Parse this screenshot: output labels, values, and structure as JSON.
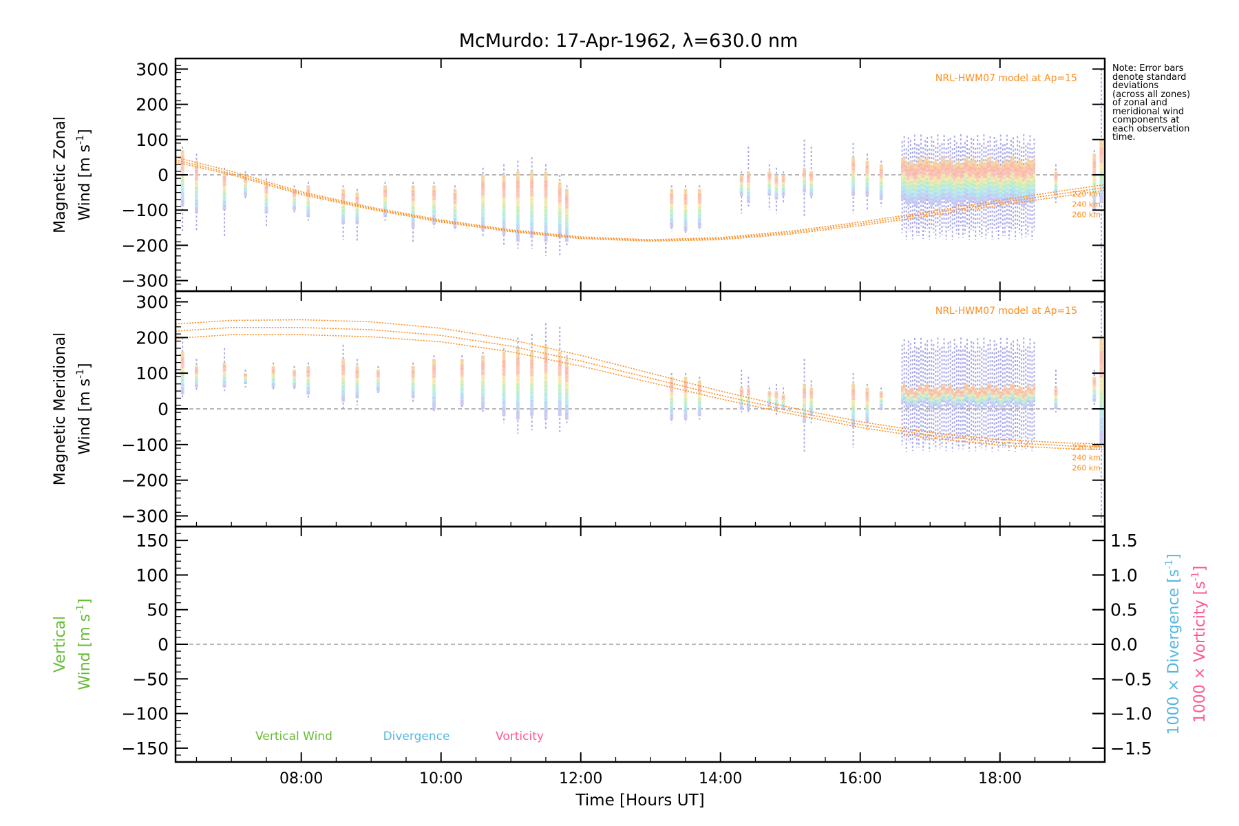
{
  "figure": {
    "title": "McMurdo: 17-Apr-1962, λ=630.0 nm",
    "note": "Note: Error bars\ndenote standard\ndeviations\n(across all zones)\nof zonal and\nmeridional wind\ncomponents at\neach observation\ntime.",
    "xlabel": "Time [Hours UT]",
    "model_label": "NRL-HWM07 model at Ap=15",
    "model_altitudes": [
      "220 km",
      "240 km",
      "260 km"
    ],
    "colors": {
      "model": "#ff8c1e",
      "zero_line": "#8c8c8c",
      "vertical_wind": "#66bb33",
      "divergence": "#55b8e0",
      "vorticity": "#ff5a8a",
      "error_bar": "#a8a8e6",
      "rainbow": [
        "#f6d39a",
        "#ffb7a0",
        "#ffc2b0",
        "#f6e9a8",
        "#c8f0b8",
        "#b4ece6",
        "#b8d8f5",
        "#c6c6f2"
      ]
    }
  },
  "chart_data": [
    {
      "type": "scatter",
      "panel": "zonal",
      "ylabel_line1": "Magnetic Zonal",
      "ylabel_line2": "Wind [m s",
      "ylabel_sup": "-1",
      "ylabel_end": "]",
      "xlim": [
        6.2,
        19.5
      ],
      "ylim": [
        -330,
        330
      ],
      "yticks": [
        -300,
        -200,
        -100,
        0,
        100,
        200,
        300
      ],
      "ytick_labels": [
        "−300",
        "−200",
        "−100",
        "0",
        "100",
        "200",
        "300"
      ],
      "series": [
        {
          "name": "220 km",
          "x": [
            6.2,
            7,
            8,
            9,
            10,
            11,
            12,
            13,
            14,
            15,
            16,
            17,
            18,
            19,
            19.5
          ],
          "y": [
            50,
            10,
            -48,
            -92,
            -128,
            -156,
            -176,
            -184,
            -178,
            -160,
            -134,
            -104,
            -72,
            -42,
            -28
          ]
        },
        {
          "name": "240 km",
          "x": [
            6.2,
            7,
            8,
            9,
            10,
            11,
            12,
            13,
            14,
            15,
            16,
            17,
            18,
            19,
            19.5
          ],
          "y": [
            42,
            4,
            -52,
            -95,
            -131,
            -159,
            -179,
            -186,
            -181,
            -164,
            -139,
            -110,
            -79,
            -50,
            -36
          ]
        },
        {
          "name": "260 km",
          "x": [
            6.2,
            7,
            8,
            9,
            10,
            11,
            12,
            13,
            14,
            15,
            16,
            17,
            18,
            19,
            19.5
          ],
          "y": [
            36,
            0,
            -56,
            -98,
            -134,
            -161,
            -181,
            -188,
            -184,
            -168,
            -144,
            -116,
            -86,
            -58,
            -44
          ]
        }
      ],
      "observations": [
        {
          "x": 6.3,
          "y_hi": 70,
          "y_lo": -90,
          "e_hi": 80,
          "e_lo": -160
        },
        {
          "x": 6.5,
          "y_hi": 40,
          "y_lo": -110,
          "e_hi": 60,
          "e_lo": -160
        },
        {
          "x": 6.9,
          "y_hi": 10,
          "y_lo": -100,
          "e_hi": 20,
          "e_lo": -175
        },
        {
          "x": 7.2,
          "y_hi": 0,
          "y_lo": -60,
          "e_hi": 10,
          "e_lo": -70
        },
        {
          "x": 7.5,
          "y_hi": -20,
          "y_lo": -110,
          "e_hi": -10,
          "e_lo": -150
        },
        {
          "x": 7.9,
          "y_hi": -40,
          "y_lo": -100,
          "e_hi": -30,
          "e_lo": -110
        },
        {
          "x": 8.1,
          "y_hi": -30,
          "y_lo": -120,
          "e_hi": -20,
          "e_lo": -130
        },
        {
          "x": 8.6,
          "y_hi": -40,
          "y_lo": -140,
          "e_hi": -30,
          "e_lo": -185
        },
        {
          "x": 8.8,
          "y_hi": -50,
          "y_lo": -140,
          "e_hi": -40,
          "e_lo": -190
        },
        {
          "x": 9.2,
          "y_hi": -30,
          "y_lo": -120,
          "e_hi": -20,
          "e_lo": -130
        },
        {
          "x": 9.6,
          "y_hi": -30,
          "y_lo": -150,
          "e_hi": -20,
          "e_lo": -195
        },
        {
          "x": 9.9,
          "y_hi": -30,
          "y_lo": -140,
          "e_hi": -20,
          "e_lo": -150
        },
        {
          "x": 10.2,
          "y_hi": -40,
          "y_lo": -150,
          "e_hi": -30,
          "e_lo": -160
        },
        {
          "x": 10.6,
          "y_hi": 0,
          "y_lo": -160,
          "e_hi": 20,
          "e_lo": -175
        },
        {
          "x": 10.9,
          "y_hi": 0,
          "y_lo": -170,
          "e_hi": 30,
          "e_lo": -200
        },
        {
          "x": 11.1,
          "y_hi": 10,
          "y_lo": -190,
          "e_hi": 40,
          "e_lo": -210
        },
        {
          "x": 11.3,
          "y_hi": 10,
          "y_lo": -180,
          "e_hi": 50,
          "e_lo": -210
        },
        {
          "x": 11.5,
          "y_hi": 10,
          "y_lo": -190,
          "e_hi": 30,
          "e_lo": -230
        },
        {
          "x": 11.7,
          "y_hi": -20,
          "y_lo": -180,
          "e_hi": 0,
          "e_lo": -230
        },
        {
          "x": 11.8,
          "y_hi": -40,
          "y_lo": -190,
          "e_hi": -30,
          "e_lo": -200
        },
        {
          "x": 13.3,
          "y_hi": -40,
          "y_lo": -150,
          "e_hi": -30,
          "e_lo": -160
        },
        {
          "x": 13.5,
          "y_hi": -40,
          "y_lo": -160,
          "e_hi": -30,
          "e_lo": -170
        },
        {
          "x": 13.7,
          "y_hi": -40,
          "y_lo": -150,
          "e_hi": -30,
          "e_lo": -160
        },
        {
          "x": 14.3,
          "y_hi": 0,
          "y_lo": -60,
          "e_hi": 10,
          "e_lo": -110
        },
        {
          "x": 14.4,
          "y_hi": 10,
          "y_lo": -80,
          "e_hi": 80,
          "e_lo": -90
        },
        {
          "x": 14.7,
          "y_hi": 10,
          "y_lo": -60,
          "e_hi": 30,
          "e_lo": -100
        },
        {
          "x": 14.8,
          "y_hi": 0,
          "y_lo": -70,
          "e_hi": 20,
          "e_lo": -110
        },
        {
          "x": 14.9,
          "y_hi": 0,
          "y_lo": -60,
          "e_hi": 10,
          "e_lo": -80
        },
        {
          "x": 15.2,
          "y_hi": 20,
          "y_lo": -50,
          "e_hi": 100,
          "e_lo": -120
        },
        {
          "x": 15.3,
          "y_hi": 10,
          "y_lo": -60,
          "e_hi": 80,
          "e_lo": -70
        },
        {
          "x": 15.9,
          "y_hi": 50,
          "y_lo": -60,
          "e_hi": 90,
          "e_lo": -110
        },
        {
          "x": 16.1,
          "y_hi": 40,
          "y_lo": -60,
          "e_hi": 60,
          "e_lo": -100
        },
        {
          "x": 16.3,
          "y_hi": 30,
          "y_lo": -70,
          "e_hi": 40,
          "e_lo": -90
        }
      ],
      "dense_band": {
        "x_start": 16.6,
        "x_end": 18.5,
        "y_hi": 40,
        "y_lo": -80,
        "e_hi": 115,
        "e_lo": -185
      },
      "observations_tail": [
        {
          "x": 18.8,
          "y_hi": 10,
          "y_lo": -60,
          "e_hi": 30,
          "e_lo": -80
        },
        {
          "x": 19.35,
          "y_hi": 60,
          "y_lo": -100,
          "e_hi": 70,
          "e_lo": -120
        },
        {
          "x": 19.45,
          "y_hi": 100,
          "y_lo": -80,
          "e_hi": 300,
          "e_lo": -300
        }
      ]
    },
    {
      "type": "scatter",
      "panel": "meridional",
      "ylabel_line1": "Magnetic Meridional",
      "ylabel_line2": "Wind [m s",
      "ylabel_sup": "-1",
      "ylabel_end": "]",
      "xlim": [
        6.2,
        19.5
      ],
      "ylim": [
        -330,
        330
      ],
      "yticks": [
        -300,
        -200,
        -100,
        0,
        100,
        200,
        300
      ],
      "ytick_labels": [
        "−300",
        "−200",
        "−100",
        "0",
        "100",
        "200",
        "300"
      ],
      "series": [
        {
          "name": "220 km",
          "x": [
            6.2,
            7,
            8,
            9,
            10,
            11,
            12,
            13,
            14,
            15,
            16,
            17,
            18,
            19,
            19.5
          ],
          "y": [
            238,
            248,
            250,
            244,
            226,
            194,
            150,
            100,
            50,
            4,
            -36,
            -66,
            -86,
            -96,
            -98
          ]
        },
        {
          "name": "240 km",
          "x": [
            6.2,
            7,
            8,
            9,
            10,
            11,
            12,
            13,
            14,
            15,
            16,
            17,
            18,
            19,
            19.5
          ],
          "y": [
            218,
            228,
            228,
            222,
            206,
            176,
            134,
            86,
            38,
            -6,
            -44,
            -74,
            -94,
            -104,
            -106
          ]
        },
        {
          "name": "260 km",
          "x": [
            6.2,
            7,
            8,
            9,
            10,
            11,
            12,
            13,
            14,
            15,
            16,
            17,
            18,
            19,
            19.5
          ],
          "y": [
            198,
            208,
            208,
            202,
            188,
            160,
            120,
            74,
            28,
            -14,
            -52,
            -82,
            -102,
            -112,
            -114
          ]
        }
      ],
      "observations": [
        {
          "x": 6.3,
          "y_hi": 160,
          "y_lo": 40,
          "e_hi": 200,
          "e_lo": 30
        },
        {
          "x": 6.5,
          "y_hi": 120,
          "y_lo": 60,
          "e_hi": 140,
          "e_lo": 50
        },
        {
          "x": 6.9,
          "y_hi": 130,
          "y_lo": 60,
          "e_hi": 170,
          "e_lo": 50
        },
        {
          "x": 7.2,
          "y_hi": 100,
          "y_lo": 70,
          "e_hi": 110,
          "e_lo": 60
        },
        {
          "x": 7.6,
          "y_hi": 120,
          "y_lo": 60,
          "e_hi": 130,
          "e_lo": 50
        },
        {
          "x": 7.9,
          "y_hi": 110,
          "y_lo": 60,
          "e_hi": 120,
          "e_lo": 50
        },
        {
          "x": 8.1,
          "y_hi": 120,
          "y_lo": 40,
          "e_hi": 130,
          "e_lo": 30
        },
        {
          "x": 8.6,
          "y_hi": 140,
          "y_lo": 20,
          "e_hi": 180,
          "e_lo": 0
        },
        {
          "x": 8.8,
          "y_hi": 120,
          "y_lo": 30,
          "e_hi": 140,
          "e_lo": 10
        },
        {
          "x": 9.1,
          "y_hi": 110,
          "y_lo": 50,
          "e_hi": 120,
          "e_lo": 40
        },
        {
          "x": 9.6,
          "y_hi": 120,
          "y_lo": 30,
          "e_hi": 130,
          "e_lo": 20
        },
        {
          "x": 9.9,
          "y_hi": 140,
          "y_lo": 0,
          "e_hi": 150,
          "e_lo": -10
        },
        {
          "x": 10.3,
          "y_hi": 140,
          "y_lo": 10,
          "e_hi": 150,
          "e_lo": 0
        },
        {
          "x": 10.6,
          "y_hi": 150,
          "y_lo": 0,
          "e_hi": 160,
          "e_lo": -10
        },
        {
          "x": 10.9,
          "y_hi": 160,
          "y_lo": -20,
          "e_hi": 170,
          "e_lo": -40
        },
        {
          "x": 11.1,
          "y_hi": 170,
          "y_lo": -30,
          "e_hi": 200,
          "e_lo": -70
        },
        {
          "x": 11.3,
          "y_hi": 160,
          "y_lo": -20,
          "e_hi": 210,
          "e_lo": -60
        },
        {
          "x": 11.5,
          "y_hi": 180,
          "y_lo": -30,
          "e_hi": 240,
          "e_lo": -60
        },
        {
          "x": 11.7,
          "y_hi": 160,
          "y_lo": -20,
          "e_hi": 230,
          "e_lo": -70
        },
        {
          "x": 11.8,
          "y_hi": 140,
          "y_lo": -30,
          "e_hi": 150,
          "e_lo": -40
        },
        {
          "x": 13.3,
          "y_hi": 90,
          "y_lo": -30,
          "e_hi": 100,
          "e_lo": -40
        },
        {
          "x": 13.5,
          "y_hi": 90,
          "y_lo": -30,
          "e_hi": 100,
          "e_lo": -40
        },
        {
          "x": 13.7,
          "y_hi": 80,
          "y_lo": -20,
          "e_hi": 90,
          "e_lo": -30
        },
        {
          "x": 14.3,
          "y_hi": 60,
          "y_lo": 0,
          "e_hi": 110,
          "e_lo": -10
        },
        {
          "x": 14.4,
          "y_hi": 60,
          "y_lo": 0,
          "e_hi": 90,
          "e_lo": -10
        },
        {
          "x": 14.7,
          "y_hi": 50,
          "y_lo": 10,
          "e_hi": 60,
          "e_lo": 0
        },
        {
          "x": 14.8,
          "y_hi": 50,
          "y_lo": 0,
          "e_hi": 70,
          "e_lo": -20
        },
        {
          "x": 14.9,
          "y_hi": 40,
          "y_lo": 0,
          "e_hi": 60,
          "e_lo": -10
        },
        {
          "x": 15.2,
          "y_hi": 70,
          "y_lo": -40,
          "e_hi": 140,
          "e_lo": -120
        },
        {
          "x": 15.3,
          "y_hi": 60,
          "y_lo": -20,
          "e_hi": 80,
          "e_lo": -40
        },
        {
          "x": 15.9,
          "y_hi": 70,
          "y_lo": -50,
          "e_hi": 100,
          "e_lo": -110
        },
        {
          "x": 16.1,
          "y_hi": 60,
          "y_lo": -40,
          "e_hi": 70,
          "e_lo": -60
        },
        {
          "x": 16.3,
          "y_hi": 50,
          "y_lo": 0,
          "e_hi": 60,
          "e_lo": -10
        }
      ],
      "dense_band": {
        "x_start": 16.6,
        "x_end": 18.5,
        "y_hi": 60,
        "y_lo": 10,
        "e_hi": 200,
        "e_lo": -120
      },
      "observations_tail": [
        {
          "x": 18.8,
          "y_hi": 60,
          "y_lo": 0,
          "e_hi": 110,
          "e_lo": -10
        },
        {
          "x": 19.35,
          "y_hi": 90,
          "y_lo": 20,
          "e_hi": 110,
          "e_lo": 10
        },
        {
          "x": 19.45,
          "y_hi": 200,
          "y_lo": -100,
          "e_hi": 300,
          "e_lo": -320
        }
      ]
    },
    {
      "type": "line",
      "panel": "vertical",
      "ylabel_line1": "Vertical",
      "ylabel_line2": "Wind [m s",
      "ylabel_sup": "-1",
      "ylabel_end": "]",
      "xlim": [
        6.2,
        19.5
      ],
      "ylim": [
        -170,
        170
      ],
      "yticks": [
        -150,
        -100,
        -50,
        0,
        50,
        100,
        150
      ],
      "ytick_labels": [
        "−150",
        "−100",
        "−50",
        "0",
        "50",
        "100",
        "150"
      ],
      "y2lim": [
        -1.7,
        1.7
      ],
      "y2ticks": [
        -1.5,
        -1.0,
        -0.5,
        0.0,
        0.5,
        1.0,
        1.5
      ],
      "y2tick_labels": [
        "−1.5",
        "−1.0",
        "−0.5",
        "0.0",
        "0.5",
        "1.0",
        "1.5"
      ],
      "y2label_div": "1000 × Divergence [s",
      "y2label_vor": "1000 × Vorticity [s",
      "y2label_sup": "-1",
      "y2label_end": "]",
      "legend": [
        "Vertical Wind",
        "Divergence",
        "Vorticity"
      ],
      "xticks": [
        8,
        10,
        12,
        14,
        16,
        18
      ],
      "xtick_labels": [
        "08:00",
        "10:00",
        "12:00",
        "14:00",
        "16:00",
        "18:00"
      ]
    }
  ]
}
